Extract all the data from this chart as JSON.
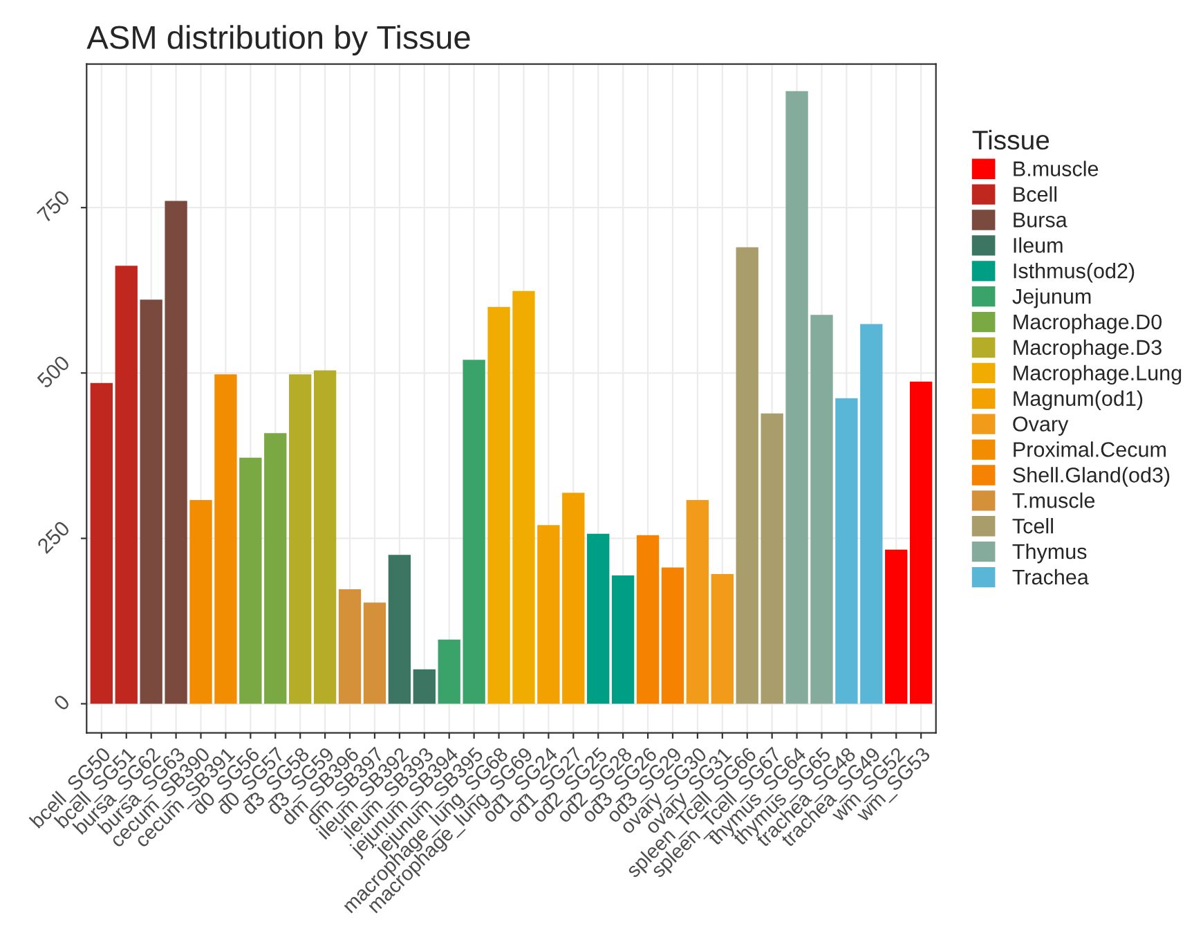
{
  "chart_data": {
    "type": "bar",
    "title": "ASM distribution by Tissue",
    "legend_title": "Tissue",
    "legend": "right",
    "grid": true,
    "categories": [
      "bcell_SG50",
      "bcell_SG51",
      "bursa_SG62",
      "bursa_SG63",
      "cecum_SB390",
      "cecum_SB391",
      "d0_SG56",
      "d0_SG57",
      "d3_SG58",
      "d3_SG59",
      "dm_SB396",
      "dm_SB397",
      "ileum_SB392",
      "ileum_SB393",
      "jejunum_SB394",
      "jejunum_SB395",
      "macrophage_lung_SG68",
      "macrophage_lung_SG69",
      "od1_SG24",
      "od1_SG27",
      "od2_SG25",
      "od2_SG28",
      "od3_SG26",
      "od3_SG29",
      "ovary_SG30",
      "ovary_SG31",
      "spleen_Tcell_SG66",
      "spleen_Tcell_SG67",
      "thymus_SG64",
      "thymus_SG65",
      "trachea_SG48",
      "trachea_SG49",
      "wm_SG52",
      "wm_SG53"
    ],
    "ylim": [
      -44,
      967
    ],
    "yticks": [
      0,
      250,
      500,
      750
    ],
    "series": [
      {
        "name": "B.muscle",
        "color": "#ff0000",
        "values": [
          null,
          null,
          null,
          null,
          null,
          null,
          null,
          null,
          null,
          null,
          null,
          null,
          null,
          null,
          null,
          null,
          null,
          null,
          null,
          null,
          null,
          null,
          null,
          null,
          null,
          null,
          null,
          null,
          null,
          null,
          null,
          null,
          233,
          487
        ]
      },
      {
        "name": "Bcell",
        "color": "#c0281f",
        "values": [
          485,
          662,
          null,
          null,
          null,
          null,
          null,
          null,
          null,
          null,
          null,
          null,
          null,
          null,
          null,
          null,
          null,
          null,
          null,
          null,
          null,
          null,
          null,
          null,
          null,
          null,
          null,
          null,
          null,
          null,
          null,
          null,
          null,
          null
        ]
      },
      {
        "name": "Bursa",
        "color": "#7b4a3e",
        "values": [
          null,
          null,
          611,
          760,
          null,
          null,
          null,
          null,
          null,
          null,
          null,
          null,
          null,
          null,
          null,
          null,
          null,
          null,
          null,
          null,
          null,
          null,
          null,
          null,
          null,
          null,
          null,
          null,
          null,
          null,
          null,
          null,
          null,
          null
        ]
      },
      {
        "name": "Ileum",
        "color": "#3d7563",
        "values": [
          null,
          null,
          null,
          null,
          null,
          null,
          null,
          null,
          null,
          null,
          null,
          null,
          225,
          52,
          null,
          null,
          null,
          null,
          null,
          null,
          null,
          null,
          null,
          null,
          null,
          null,
          null,
          null,
          null,
          null,
          null,
          null,
          null,
          null
        ]
      },
      {
        "name": "Isthmus(od2)",
        "color": "#009e84",
        "values": [
          null,
          null,
          null,
          null,
          null,
          null,
          null,
          null,
          null,
          null,
          null,
          null,
          null,
          null,
          null,
          null,
          null,
          null,
          null,
          null,
          257,
          194,
          null,
          null,
          null,
          null,
          null,
          null,
          null,
          null,
          null,
          null,
          null,
          null
        ]
      },
      {
        "name": "Jejunum",
        "color": "#3aa36a",
        "values": [
          null,
          null,
          null,
          null,
          null,
          null,
          null,
          null,
          null,
          null,
          null,
          null,
          null,
          null,
          97,
          520,
          null,
          null,
          null,
          null,
          null,
          null,
          null,
          null,
          null,
          null,
          null,
          null,
          null,
          null,
          null,
          null,
          null,
          null
        ]
      },
      {
        "name": "Macrophage.D0",
        "color": "#7aa843",
        "values": [
          null,
          null,
          null,
          null,
          null,
          null,
          372,
          409,
          null,
          null,
          null,
          null,
          null,
          null,
          null,
          null,
          null,
          null,
          null,
          null,
          null,
          null,
          null,
          null,
          null,
          null,
          null,
          null,
          null,
          null,
          null,
          null,
          null,
          null
        ]
      },
      {
        "name": "Macrophage.D3",
        "color": "#b5ac28",
        "values": [
          null,
          null,
          null,
          null,
          null,
          null,
          null,
          null,
          498,
          504,
          null,
          null,
          null,
          null,
          null,
          null,
          null,
          null,
          null,
          null,
          null,
          null,
          null,
          null,
          null,
          null,
          null,
          null,
          null,
          null,
          null,
          null,
          null,
          null
        ]
      },
      {
        "name": "Macrophage.Lung",
        "color": "#f0ac00",
        "values": [
          null,
          null,
          null,
          null,
          null,
          null,
          null,
          null,
          null,
          null,
          null,
          null,
          null,
          null,
          null,
          null,
          600,
          624,
          null,
          null,
          null,
          null,
          null,
          null,
          null,
          null,
          null,
          null,
          null,
          null,
          null,
          null,
          null,
          null
        ]
      },
      {
        "name": "Magnum(od1)",
        "color": "#f2a100",
        "values": [
          null,
          null,
          null,
          null,
          null,
          null,
          null,
          null,
          null,
          null,
          null,
          null,
          null,
          null,
          null,
          null,
          null,
          null,
          270,
          319,
          null,
          null,
          null,
          null,
          null,
          null,
          null,
          null,
          null,
          null,
          null,
          null,
          null,
          null
        ]
      },
      {
        "name": "Ovary",
        "color": "#f29a1a",
        "values": [
          null,
          null,
          null,
          null,
          null,
          null,
          null,
          null,
          null,
          null,
          null,
          null,
          null,
          null,
          null,
          null,
          null,
          null,
          null,
          null,
          null,
          null,
          null,
          null,
          308,
          196,
          null,
          null,
          null,
          null,
          null,
          null,
          null,
          null
        ]
      },
      {
        "name": "Proximal.Cecum",
        "color": "#f28c00",
        "values": [
          null,
          null,
          null,
          null,
          308,
          498,
          null,
          null,
          null,
          null,
          null,
          null,
          null,
          null,
          null,
          null,
          null,
          null,
          null,
          null,
          null,
          null,
          null,
          null,
          null,
          null,
          null,
          null,
          null,
          null,
          null,
          null,
          null,
          null
        ]
      },
      {
        "name": "Shell.Gland(od3)",
        "color": "#f58200",
        "values": [
          null,
          null,
          null,
          null,
          null,
          null,
          null,
          null,
          null,
          null,
          null,
          null,
          null,
          null,
          null,
          null,
          null,
          null,
          null,
          null,
          null,
          null,
          255,
          206,
          null,
          null,
          null,
          null,
          null,
          null,
          null,
          null,
          null,
          null
        ]
      },
      {
        "name": "T.muscle",
        "color": "#d4913a",
        "values": [
          null,
          null,
          null,
          null,
          null,
          null,
          null,
          null,
          null,
          null,
          173,
          153,
          null,
          null,
          null,
          null,
          null,
          null,
          null,
          null,
          null,
          null,
          null,
          null,
          null,
          null,
          null,
          null,
          null,
          null,
          null,
          null,
          null,
          null
        ]
      },
      {
        "name": "Tcell",
        "color": "#a99d6c",
        "values": [
          null,
          null,
          null,
          null,
          null,
          null,
          null,
          null,
          null,
          null,
          null,
          null,
          null,
          null,
          null,
          null,
          null,
          null,
          null,
          null,
          null,
          null,
          null,
          null,
          null,
          null,
          690,
          439,
          null,
          null,
          null,
          null,
          null,
          null
        ]
      },
      {
        "name": "Thymus",
        "color": "#84ab9c",
        "values": [
          null,
          null,
          null,
          null,
          null,
          null,
          null,
          null,
          null,
          null,
          null,
          null,
          null,
          null,
          null,
          null,
          null,
          null,
          null,
          null,
          null,
          null,
          null,
          null,
          null,
          null,
          null,
          null,
          926,
          588,
          null,
          null,
          null,
          null
        ]
      },
      {
        "name": "Trachea",
        "color": "#5ab6d6",
        "values": [
          null,
          null,
          null,
          null,
          null,
          null,
          null,
          null,
          null,
          null,
          null,
          null,
          null,
          null,
          null,
          null,
          null,
          null,
          null,
          null,
          null,
          null,
          null,
          null,
          null,
          null,
          null,
          null,
          null,
          null,
          462,
          574,
          null,
          null
        ]
      }
    ]
  }
}
